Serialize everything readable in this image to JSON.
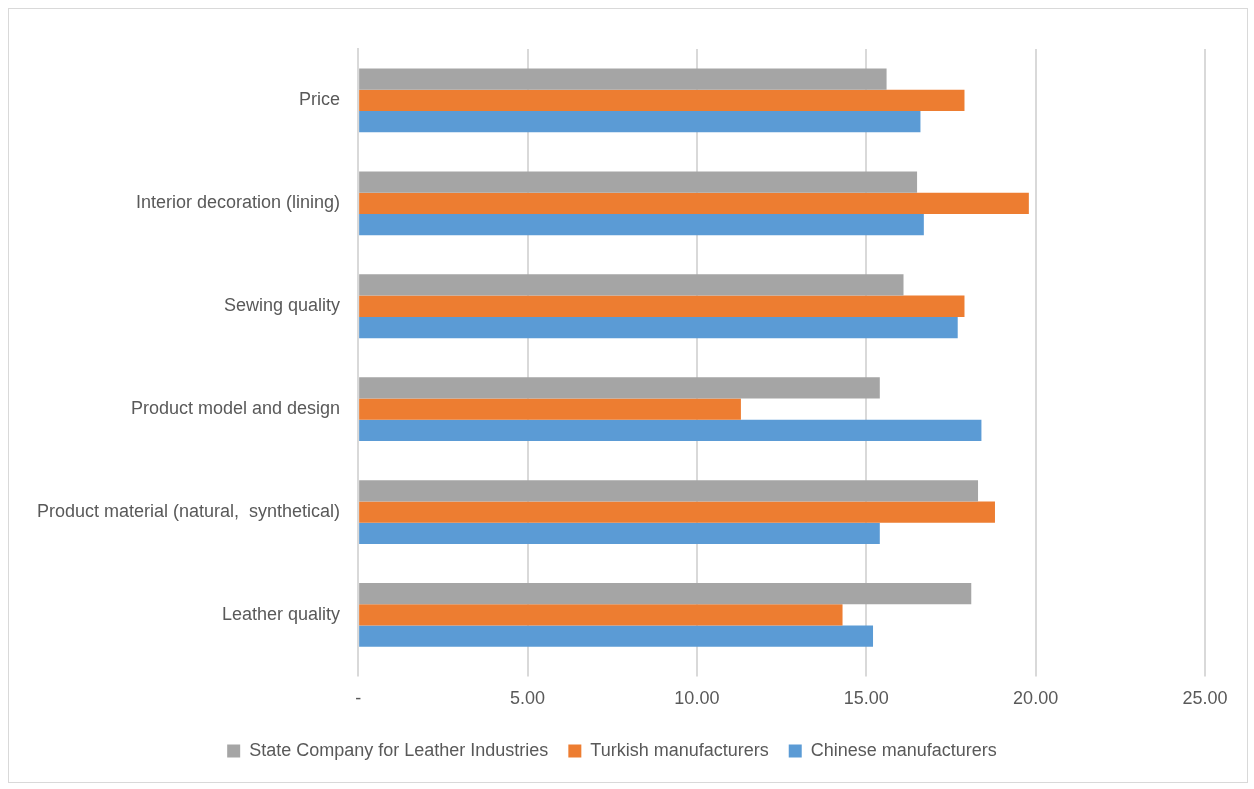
{
  "chart_data": {
    "type": "bar",
    "orientation": "horizontal",
    "categories": [
      "Price",
      "Interior decoration (lining)",
      "Sewing quality",
      "Product model and design",
      "Product material (natural,  synthetical)",
      "Leather quality"
    ],
    "series": [
      {
        "name": "State Company for Leather Industries",
        "color": "#a5a5a5",
        "values": [
          15.6,
          16.5,
          16.1,
          15.4,
          18.3,
          18.1
        ]
      },
      {
        "name": "Turkish manufacturers",
        "color": "#ed7d31",
        "values": [
          17.9,
          19.8,
          17.9,
          11.3,
          18.8,
          14.3
        ]
      },
      {
        "name": "Chinese manufacturers",
        "color": "#5b9bd5",
        "values": [
          16.6,
          16.7,
          17.7,
          18.4,
          15.4,
          15.2
        ]
      }
    ],
    "xlim": [
      0,
      25
    ],
    "xticks": [
      {
        "value": 0,
        "label": "-"
      },
      {
        "value": 5,
        "label": "5.00"
      },
      {
        "value": 10,
        "label": "10.00"
      },
      {
        "value": 15,
        "label": "15.00"
      },
      {
        "value": 20,
        "label": "20.00"
      },
      {
        "value": 25,
        "label": "25.00"
      }
    ],
    "grid": "x",
    "legend": "bottom"
  }
}
